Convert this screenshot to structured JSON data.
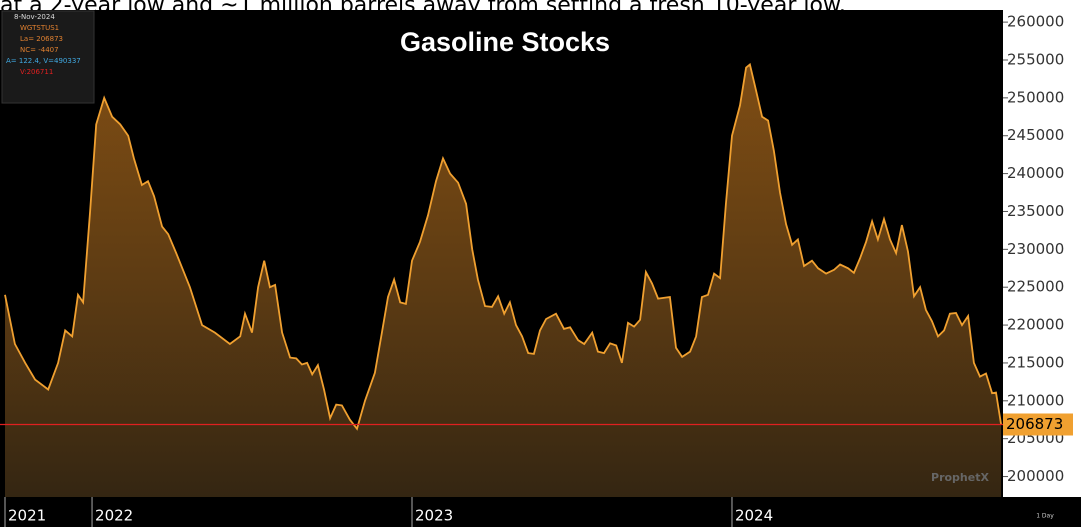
{
  "page_text": "at a 2-year low and ~1 million barrels away from setting a fresh 10-year low.",
  "chart_data": {
    "type": "area",
    "title": "Gasoline Stocks",
    "legend_lines": [
      "8-Nov-2024",
      "WGTSTUS1",
      "La= 206873",
      "NC= -4407",
      "A= 122.4, V=490337",
      "V:206711"
    ],
    "watermark": "ProphetX",
    "interval": "1 Day",
    "last_value": 206873,
    "reference_line_color": "#e02020",
    "series": [
      {
        "name": "WGTSTUS1",
        "color": "#f0a030",
        "x": [
          2021.728,
          2021.759,
          2021.791,
          2021.822,
          2021.863,
          2021.894,
          2021.916,
          2021.938,
          2021.956,
          2021.972,
          2021.994,
          2022.013,
          2022.038,
          2022.063,
          2022.088,
          2022.113,
          2022.131,
          2022.156,
          2022.175,
          2022.194,
          2022.219,
          2022.238,
          2022.263,
          2022.306,
          2022.344,
          2022.384,
          2022.431,
          2022.463,
          2022.478,
          2022.5,
          2022.519,
          2022.538,
          2022.556,
          2022.572,
          2022.594,
          2022.619,
          2022.638,
          2022.656,
          2022.672,
          2022.688,
          2022.706,
          2022.725,
          2022.744,
          2022.763,
          2022.781,
          2022.806,
          2022.828,
          2022.853,
          2022.884,
          2022.906,
          2022.925,
          2022.944,
          2022.963,
          2022.981,
          2023.0,
          2023.025,
          2023.05,
          2023.075,
          2023.097,
          2023.119,
          2023.144,
          2023.169,
          2023.188,
          2023.206,
          2023.228,
          2023.25,
          2023.269,
          2023.288,
          2023.306,
          2023.325,
          2023.344,
          2023.363,
          2023.381,
          2023.4,
          2023.419,
          2023.45,
          2023.475,
          2023.494,
          2023.519,
          2023.538,
          2023.563,
          2023.581,
          2023.6,
          2023.619,
          2023.638,
          2023.656,
          2023.675,
          2023.694,
          2023.713,
          2023.731,
          2023.75,
          2023.769,
          2023.806,
          2023.825,
          2023.844,
          2023.869,
          2023.888,
          2023.906,
          2023.925,
          2023.944,
          2023.963,
          2023.981,
          2024.0,
          2024.025,
          2024.044,
          2024.056,
          2024.075,
          2024.094,
          2024.113,
          2024.131,
          2024.15,
          2024.169,
          2024.188,
          2024.206,
          2024.225,
          2024.25,
          2024.269,
          2024.294,
          2024.319,
          2024.338,
          2024.363,
          2024.381,
          2024.4,
          2024.419,
          2024.438,
          2024.456,
          2024.475,
          2024.494,
          2024.513,
          2024.531,
          2024.55,
          2024.569,
          2024.588,
          2024.606,
          2024.625,
          2024.644,
          2024.663,
          2024.681,
          2024.7,
          2024.719,
          2024.738,
          2024.756,
          2024.775,
          2024.794,
          2024.813,
          2024.825,
          2024.841
        ],
        "values": [
          224000,
          217500,
          215000,
          212800,
          211500,
          215000,
          219300,
          218500,
          224000,
          223000,
          235000,
          246500,
          250000,
          247500,
          246500,
          245000,
          242000,
          238500,
          239000,
          237000,
          233000,
          232000,
          229500,
          225000,
          220000,
          219000,
          217500,
          218500,
          221500,
          219000,
          225000,
          228500,
          225000,
          225300,
          219000,
          215700,
          215600,
          214800,
          215000,
          213500,
          214700,
          211500,
          207700,
          209500,
          209400,
          207500,
          206300,
          210000,
          213700,
          219000,
          223700,
          226000,
          223000,
          222800,
          228500,
          231000,
          234500,
          239000,
          242000,
          240000,
          238800,
          236000,
          230000,
          226000,
          222500,
          222400,
          223800,
          221500,
          223000,
          220000,
          218500,
          216300,
          216200,
          219300,
          220800,
          221500,
          219500,
          219700,
          218000,
          217500,
          219000,
          216500,
          216300,
          217600,
          217300,
          215000,
          220300,
          219800,
          220700,
          227000,
          225500,
          223500,
          223700,
          217000,
          215800,
          216500,
          218500,
          223700,
          224000,
          226800,
          226200,
          236000,
          245000,
          249000,
          254000,
          254400,
          251000,
          247500,
          247000,
          243000,
          237500,
          233300,
          230600,
          231300,
          227800,
          228500,
          227500,
          226800,
          227300,
          228000,
          227500,
          226900,
          228800,
          231000,
          233700,
          231300,
          234000,
          231300,
          229500,
          233200,
          229700,
          223800,
          225000,
          222000,
          220500,
          218500,
          219300,
          221500,
          221600,
          220000,
          221200,
          215000,
          213200,
          213600,
          211000,
          211100,
          206873
        ]
      }
    ],
    "xlim": [
      2021.728,
      2024.847
    ],
    "xticks": [
      {
        "value": 2021.728,
        "label": "2021"
      },
      2022,
      2023,
      2024
    ],
    "ylim": [
      197300,
      261600
    ],
    "yticks": [
      200000,
      205000,
      210000,
      215000,
      220000,
      225000,
      230000,
      235000,
      240000,
      245000,
      250000,
      255000,
      260000
    ],
    "yaxis_side": "right"
  }
}
